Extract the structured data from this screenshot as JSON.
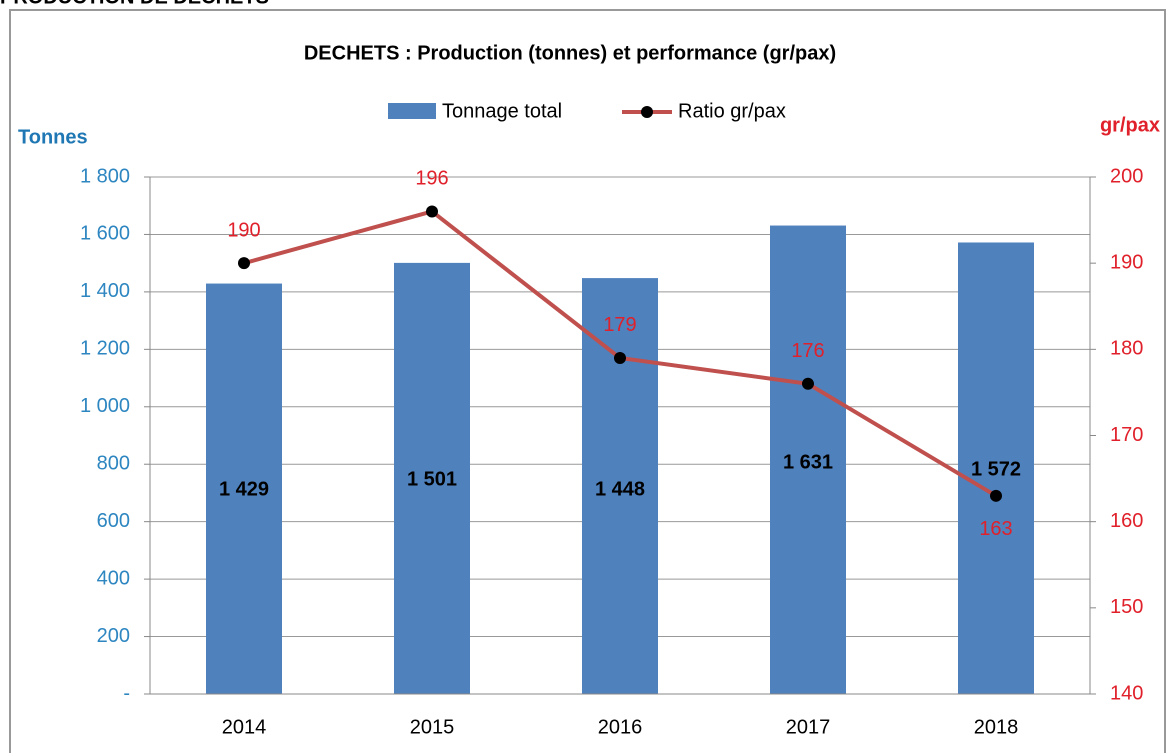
{
  "header": {
    "title": "PRODUCTION DE DECHETS"
  },
  "chart_data": {
    "type": "bar",
    "title": "DECHETS : Production (tonnes) et performance (gr/pax)",
    "y_label": "Tonnes",
    "y2_label": "gr/pax",
    "categories": [
      "2014",
      "2015",
      "2016",
      "2017",
      "2018"
    ],
    "series": [
      {
        "name": "Tonnage total",
        "type": "bar",
        "color": "#4f81bd",
        "values": [
          1429,
          1501,
          1448,
          1631,
          1572
        ],
        "value_labels": [
          "1 429",
          "1 501",
          "1 448",
          "1 631",
          "1 572"
        ]
      },
      {
        "name": "Ratio gr/pax",
        "type": "line",
        "axis": "y2",
        "color": "#c0504d",
        "values": [
          190,
          196,
          179,
          176,
          163
        ]
      }
    ],
    "ylim": [
      0,
      1800
    ],
    "yticks": [
      {
        "value": 0,
        "label": "-"
      },
      200,
      400,
      600,
      800,
      {
        "value": 1000,
        "label": "1 000"
      },
      {
        "value": 1200,
        "label": "1 200"
      },
      {
        "value": 1400,
        "label": "1 400"
      },
      {
        "value": 1600,
        "label": "1 600"
      },
      {
        "value": 1800,
        "label": "1 800"
      }
    ],
    "y2lim": [
      140,
      200
    ],
    "y2ticks": [
      140,
      150,
      160,
      170,
      180,
      190,
      200
    ],
    "grid": true
  }
}
